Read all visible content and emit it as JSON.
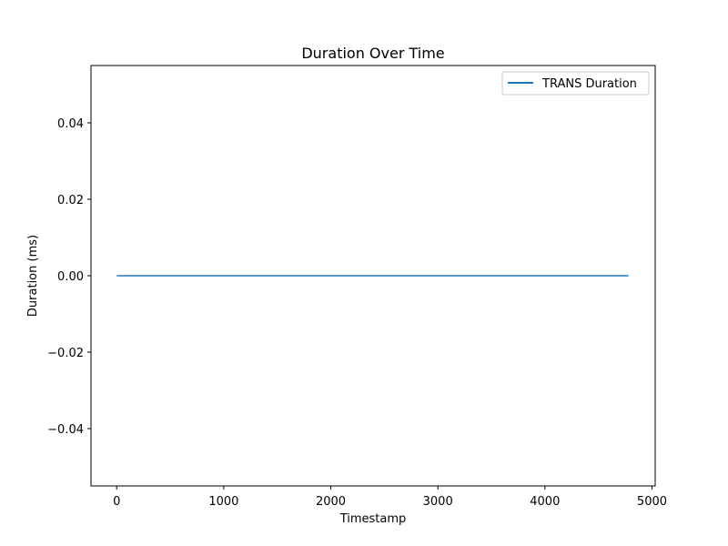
{
  "chart_data": {
    "type": "line",
    "title": "Duration Over Time",
    "xlabel": "Timestamp",
    "ylabel": "Duration (ms)",
    "xlim": [
      -240,
      5030
    ],
    "ylim": [
      -0.055,
      0.055
    ],
    "xticks": [
      0,
      1000,
      2000,
      3000,
      4000,
      5000
    ],
    "xtick_labels": [
      "0",
      "1000",
      "2000",
      "3000",
      "4000",
      "5000"
    ],
    "yticks": [
      -0.04,
      -0.02,
      0.0,
      0.02,
      0.04
    ],
    "ytick_labels": [
      "−0.04",
      "−0.02",
      "0.00",
      "0.02",
      "0.04"
    ],
    "grid": false,
    "legend_position": "top-right",
    "series": [
      {
        "name": "TRANS Duration",
        "color": "#1f77b4",
        "x": [
          0,
          4780
        ],
        "y": [
          0.0,
          0.0
        ]
      }
    ]
  }
}
